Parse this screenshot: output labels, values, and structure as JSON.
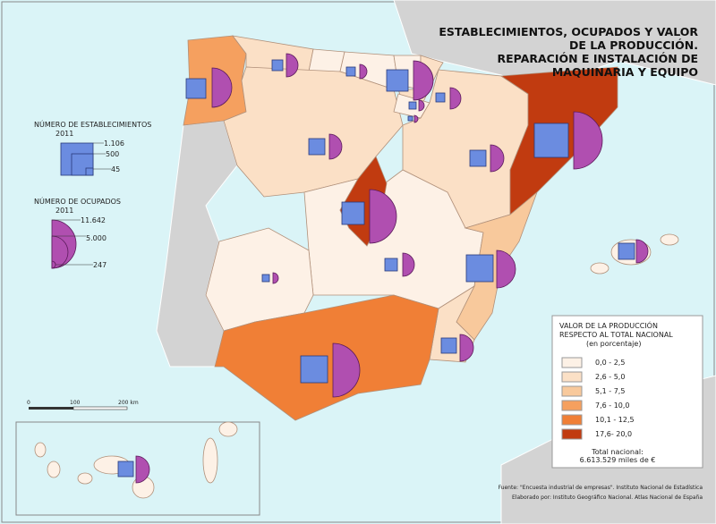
{
  "title": [
    "ESTABLECIMIENTOS, OCUPADOS Y VALOR",
    "DE LA PRODUCCIÓN.",
    "REPARACIÓN E INSTALACIÓN DE",
    "MAQUINARIA Y EQUIPO"
  ],
  "legend_establishments": {
    "title": [
      "NÚMERO DE ESTABLECIMIENTOS",
      "2011"
    ],
    "ticks": [
      "1.106",
      "500",
      "45"
    ]
  },
  "legend_employed": {
    "title": [
      "NÚMERO DE OCUPADOS",
      "2011"
    ],
    "ticks": [
      "11.642",
      "5.000",
      "247"
    ]
  },
  "scale": {
    "labels": [
      "0",
      "100",
      "200 km"
    ]
  },
  "legend_value": {
    "title": [
      "VALOR DE LA PRODUCCIÓN",
      "RESPECTO AL TOTAL NACIONAL",
      "(en porcentaje)"
    ],
    "classes": [
      {
        "label": "0,0 - 2,5",
        "color": "#fdf1e6"
      },
      {
        "label": "2,6 - 5,0",
        "color": "#fbe0c6"
      },
      {
        "label": "5,1 - 7,5",
        "color": "#f8c99c"
      },
      {
        "label": "7,6 - 10,0",
        "color": "#f5a05f"
      },
      {
        "label": "10,1 - 12,5",
        "color": "#f07f36"
      },
      {
        "label": "17,6- 20,0",
        "color": "#c13b10"
      }
    ],
    "total": [
      "Total nacional:",
      "6.613.529 miles de €"
    ]
  },
  "source": [
    "Fuente: \"Encuesta industrial de empresas\". Instituto Nacional de Estadística",
    "Elaborado por: Instituto Geográfico Nacional. Atlas Nacional de España"
  ]
}
